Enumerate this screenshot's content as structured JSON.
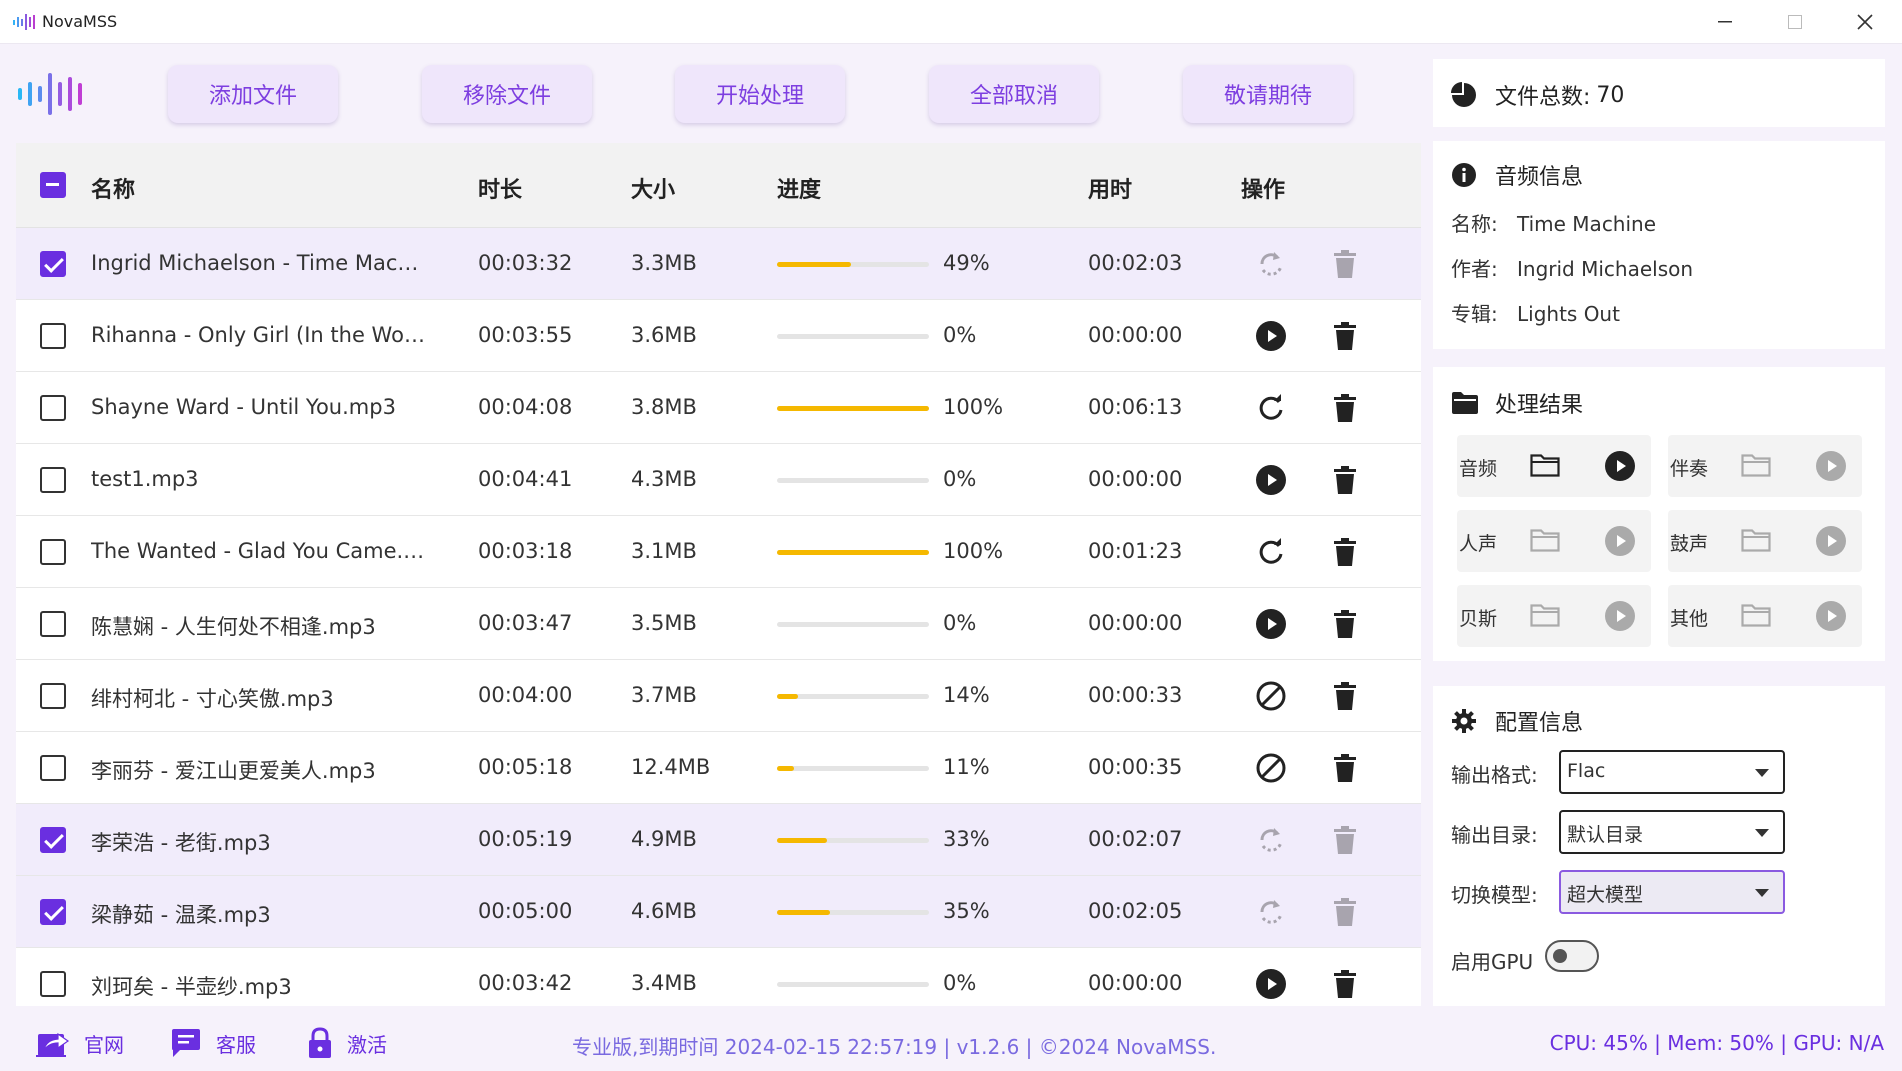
{
  "window": {
    "title": "NovaMSS",
    "minimize_icon": "minimize-icon",
    "maximize_icon": "maximize-icon",
    "close_icon": "close-icon"
  },
  "toolbar": {
    "buttons": [
      {
        "label": "添加文件"
      },
      {
        "label": "移除文件"
      },
      {
        "label": "开始处理"
      },
      {
        "label": "全部取消"
      },
      {
        "label": "敬请期待"
      }
    ]
  },
  "table": {
    "headers": {
      "name": "名称",
      "duration": "时长",
      "size": "大小",
      "progress": "进度",
      "elapsed": "用时",
      "actions": "操作"
    },
    "rows": [
      {
        "checked": true,
        "name": "Ingrid Michaelson - Time Mac…",
        "duration": "00:03:32",
        "size": "3.3MB",
        "progress": 0.49,
        "percent": "49%",
        "elapsed": "00:02:03",
        "action_icon": "processing-icon",
        "disabled": true
      },
      {
        "checked": false,
        "name": "Rihanna - Only Girl (In the Wo…",
        "duration": "00:03:55",
        "size": "3.6MB",
        "progress": 0.0,
        "percent": "0%",
        "elapsed": "00:00:00",
        "action_icon": "play-icon",
        "disabled": false
      },
      {
        "checked": false,
        "name": "Shayne Ward - Until You.mp3",
        "duration": "00:04:08",
        "size": "3.8MB",
        "progress": 1.0,
        "percent": "100%",
        "elapsed": "00:06:13",
        "action_icon": "retry-icon",
        "disabled": false
      },
      {
        "checked": false,
        "name": "test1.mp3",
        "duration": "00:04:41",
        "size": "4.3MB",
        "progress": 0.0,
        "percent": "0%",
        "elapsed": "00:00:00",
        "action_icon": "play-icon",
        "disabled": false
      },
      {
        "checked": false,
        "name": "The Wanted - Glad You Came.…",
        "duration": "00:03:18",
        "size": "3.1MB",
        "progress": 1.0,
        "percent": "100%",
        "elapsed": "00:01:23",
        "action_icon": "retry-icon",
        "disabled": false
      },
      {
        "checked": false,
        "name": "陈慧娴 - 人生何处不相逢.mp3",
        "duration": "00:03:47",
        "size": "3.5MB",
        "progress": 0.0,
        "percent": "0%",
        "elapsed": "00:00:00",
        "action_icon": "play-icon",
        "disabled": false
      },
      {
        "checked": false,
        "name": "绯村柯北 - 寸心笑傲.mp3",
        "duration": "00:04:00",
        "size": "3.7MB",
        "progress": 0.14,
        "percent": "14%",
        "elapsed": "00:00:33",
        "action_icon": "cancel-icon",
        "disabled": false
      },
      {
        "checked": false,
        "name": "李丽芬 - 爱江山更爱美人.mp3",
        "duration": "00:05:18",
        "size": "12.4MB",
        "progress": 0.11,
        "percent": "11%",
        "elapsed": "00:00:35",
        "action_icon": "cancel-icon",
        "disabled": false
      },
      {
        "checked": true,
        "name": "李荣浩 - 老街.mp3",
        "duration": "00:05:19",
        "size": "4.9MB",
        "progress": 0.33,
        "percent": "33%",
        "elapsed": "00:02:07",
        "action_icon": "processing-icon",
        "disabled": true
      },
      {
        "checked": true,
        "name": "梁静茹 - 温柔.mp3",
        "duration": "00:05:00",
        "size": "4.6MB",
        "progress": 0.35,
        "percent": "35%",
        "elapsed": "00:02:05",
        "action_icon": "processing-icon",
        "disabled": true
      },
      {
        "checked": false,
        "name": "刘珂矣 - 半壶纱.mp3",
        "duration": "00:03:42",
        "size": "3.4MB",
        "progress": 0.0,
        "percent": "0%",
        "elapsed": "00:00:00",
        "action_icon": "play-icon",
        "disabled": false
      }
    ]
  },
  "summary": {
    "label": "文件总数:",
    "count": "70"
  },
  "audio_info": {
    "title": "音频信息",
    "fields": [
      {
        "key": "名称:",
        "value": "Time Machine"
      },
      {
        "key": "作者:",
        "value": "Ingrid Michaelson"
      },
      {
        "key": "专辑:",
        "value": "Lights Out"
      }
    ]
  },
  "results": {
    "title": "处理结果",
    "items": [
      {
        "label": "音频",
        "active": true
      },
      {
        "label": "伴奏",
        "active": false
      },
      {
        "label": "人声",
        "active": false
      },
      {
        "label": "鼓声",
        "active": false
      },
      {
        "label": "贝斯",
        "active": false
      },
      {
        "label": "其他",
        "active": false
      }
    ]
  },
  "config": {
    "title": "配置信息",
    "output_format": {
      "label": "输出格式:",
      "value": "Flac"
    },
    "output_dir": {
      "label": "输出目录:",
      "value": "默认目录"
    },
    "model": {
      "label": "切换模型:",
      "value": "超大模型"
    },
    "gpu": {
      "label": "启用GPU",
      "enabled": false
    }
  },
  "statusbar": {
    "links": [
      {
        "label": "官网",
        "icon": "share-icon"
      },
      {
        "label": "客服",
        "icon": "chat-icon"
      },
      {
        "label": "激活",
        "icon": "lock-icon"
      }
    ],
    "version_text": "专业版,到期时间 2024-02-15 22:57:19 | v1.2.6 | ©2024 NovaMSS.",
    "system_text": "CPU: 45% | Mem: 50% | GPU: N/A"
  },
  "colors": {
    "accent": "#6a2fe0",
    "progress": "#f5b800",
    "button_bg": "#efe6fb"
  }
}
